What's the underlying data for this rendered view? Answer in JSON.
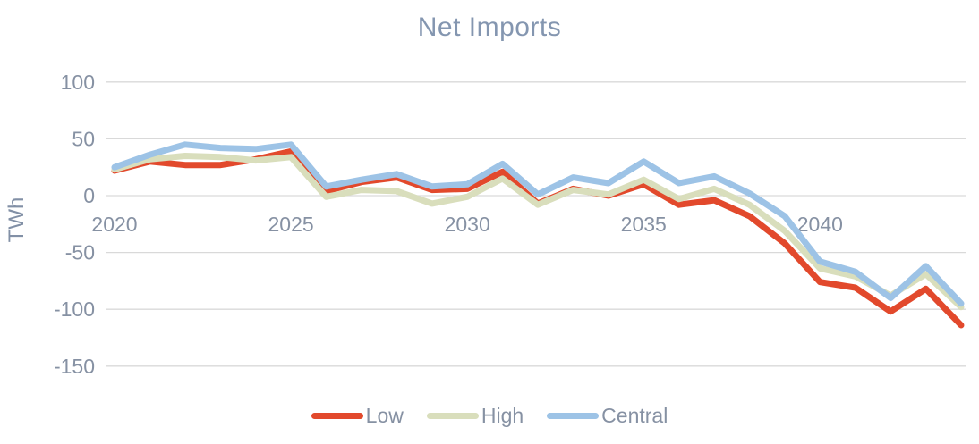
{
  "title": "Net Imports",
  "y_axis": {
    "label": "TWh",
    "ticks": [
      100,
      50,
      0,
      -50,
      -100,
      -150
    ]
  },
  "x_axis": {
    "ticks": [
      2020,
      2025,
      2030,
      2035,
      2040
    ]
  },
  "colors": {
    "gridline": "#d9d9d9",
    "tick_text": "#8691a3",
    "title_text": "#8496b0",
    "low": "#e2492c",
    "high": "#d9debc",
    "central": "#9dc3e6"
  },
  "chart_data": {
    "type": "line",
    "title": "Net Imports",
    "xlabel": "",
    "ylabel": "TWh",
    "xlim": [
      2020,
      2044
    ],
    "ylim": [
      -150,
      100
    ],
    "grid": true,
    "legend_position": "bottom",
    "x": [
      2020,
      2021,
      2022,
      2023,
      2024,
      2025,
      2026,
      2027,
      2028,
      2029,
      2030,
      2031,
      2032,
      2033,
      2034,
      2035,
      2036,
      2037,
      2038,
      2039,
      2040,
      2041,
      2042,
      2043,
      2044
    ],
    "series": [
      {
        "name": "Low",
        "color": "#e2492c",
        "values": [
          22,
          30,
          27,
          27,
          32,
          39,
          4,
          12,
          16,
          5,
          6,
          21,
          -7,
          6,
          0,
          10,
          -8,
          -4,
          -18,
          -42,
          -76,
          -81,
          -102,
          -82,
          -114
        ]
      },
      {
        "name": "High",
        "color": "#d9debc",
        "values": [
          23,
          32,
          35,
          34,
          31,
          34,
          -1,
          5,
          4,
          -7,
          -1,
          15,
          -8,
          5,
          1,
          14,
          -3,
          6,
          -8,
          -31,
          -64,
          -71,
          -88,
          -69,
          -98
        ]
      },
      {
        "name": "Central",
        "color": "#9dc3e6",
        "values": [
          25,
          36,
          45,
          42,
          41,
          45,
          8,
          14,
          19,
          8,
          10,
          28,
          1,
          16,
          11,
          30,
          11,
          17,
          2,
          -18,
          -58,
          -67,
          -90,
          -62,
          -95
        ]
      }
    ]
  }
}
